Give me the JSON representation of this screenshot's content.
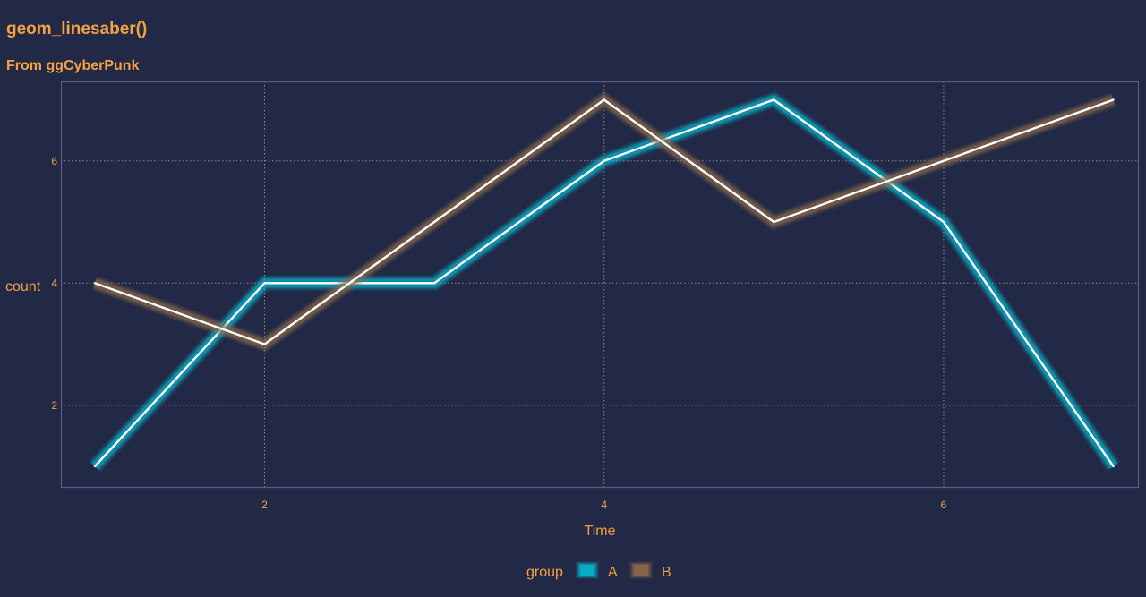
{
  "chart_data": {
    "type": "line",
    "title": "geom_linesaber()",
    "subtitle": "From ggCyberPunk",
    "xlabel": "Time",
    "ylabel": "count",
    "x": [
      1,
      2,
      3,
      4,
      5,
      6,
      7
    ],
    "xlim": [
      0.8,
      7.15
    ],
    "ylim": [
      0.65,
      7.3
    ],
    "x_ticks": [
      "2",
      "4",
      "6"
    ],
    "y_ticks": [
      "2",
      "4",
      "6"
    ],
    "grid": true,
    "legend": {
      "title": "group",
      "position": "bottom"
    },
    "series": [
      {
        "name": "A",
        "values": [
          1,
          4,
          4,
          6,
          7,
          5,
          1
        ],
        "color": "#08B8D0"
      },
      {
        "name": "B",
        "values": [
          4,
          3,
          5,
          7,
          5,
          6,
          7
        ],
        "color": "#8F6A4C"
      }
    ],
    "saber_core_color": "#FFFFFF"
  }
}
